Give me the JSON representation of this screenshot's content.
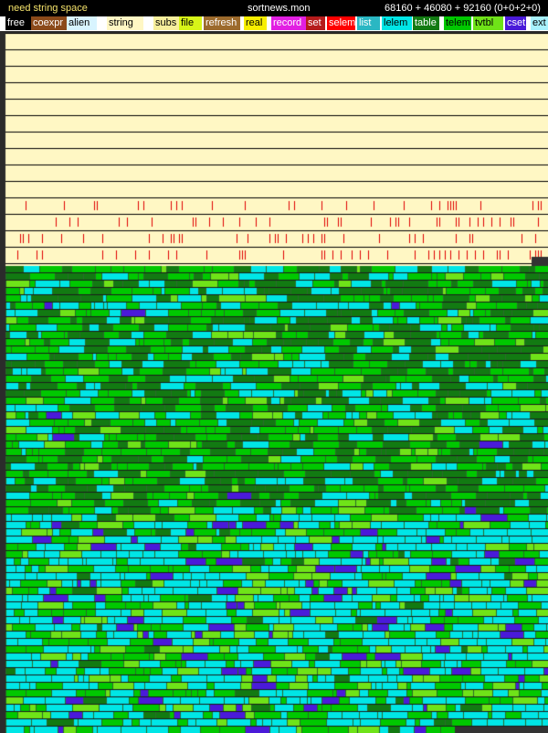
{
  "header": {
    "status": "need string space",
    "filename": "sortnews.mon",
    "memory": "68160 + 46080 + 92160  (0+0+2+0)"
  },
  "legend": [
    {
      "label": "free",
      "color": "#000000",
      "text_color": "#ffffff"
    },
    {
      "label": "coexpr",
      "color": "#8b4a1a",
      "text_color": "#ffffff"
    },
    {
      "label": "alien",
      "color": "#d8f4ff",
      "text_color": "#000000"
    },
    {
      "label": "string",
      "color": "#fff7c4",
      "text_color": "#000000"
    },
    {
      "label": "subs",
      "color": "#f7ef9c",
      "text_color": "#000000"
    },
    {
      "label": "file",
      "color": "#d7f518",
      "text_color": "#000000"
    },
    {
      "label": "refresh",
      "color": "#9c6a2c",
      "text_color": "#ffffff"
    },
    {
      "label": "real",
      "color": "#f7ef00",
      "text_color": "#000000"
    },
    {
      "label": "record",
      "color": "#e21fe2",
      "text_color": "#ffffff"
    },
    {
      "label": "set",
      "color": "#b51b1b",
      "text_color": "#ffffff"
    },
    {
      "label": "selem",
      "color": "#ff0000",
      "text_color": "#ffffff"
    },
    {
      "label": "list",
      "color": "#2ab7c3",
      "text_color": "#ffffff"
    },
    {
      "label": "lelem",
      "color": "#00e6e6",
      "text_color": "#000000"
    },
    {
      "label": "table",
      "color": "#127a12",
      "text_color": "#ffffff"
    },
    {
      "label": "telem",
      "color": "#00c800",
      "text_color": "#000000"
    },
    {
      "label": "tvtbl",
      "color": "#6fe318",
      "text_color": "#000000"
    },
    {
      "label": "cset",
      "color": "#4a1ad9",
      "text_color": "#ffffff"
    },
    {
      "label": "ext",
      "color": "#a8f2ff",
      "text_color": "#000000"
    }
  ]
}
